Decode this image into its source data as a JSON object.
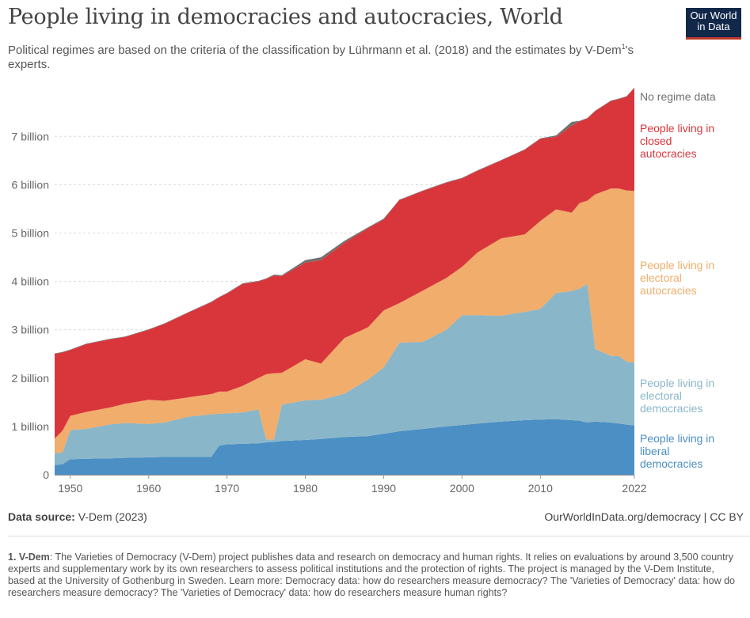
{
  "title": "People living in democracies and autocracies, World",
  "subtitle_main": "Political regimes are based on the criteria of the classification by Lührmann et al. (2018) and the estimates by V-Dem",
  "subtitle_sup": "1",
  "subtitle_end": "'s experts.",
  "logo": {
    "line1": "Our World",
    "line2": "in Data"
  },
  "colors": {
    "liberal": "#4c8fc4",
    "electoral_democracy": "#89b6c9",
    "electoral_autocracy": "#f0ad6b",
    "closed_autocracy": "#d9363b",
    "no_data": "#707070"
  },
  "source_label": "Data source:",
  "source_value": "V-Dem (2023)",
  "source_url": "OurWorldInData.org/democracy | CC BY",
  "note_label": "1. V-Dem",
  "note_text": ": The Varieties of Democracy (V-Dem) project publishes data and research on democracy and human rights. It relies on evaluations by around 3,500 country experts and supplementary work by its own researchers to assess political institutions and the protection of rights. The project is managed by the V-Dem Institute, based at the University of Gothenburg in Sweden. Learn more: Democracy data: how do researchers measure democracy? The 'Varieties of Democracy' data: how do researchers measure democracy? The 'Varieties of Democracy' data: how do researchers measure human rights?",
  "chart_data": {
    "type": "area",
    "stacked": true,
    "title": "People living in democracies and autocracies, World",
    "xlim": [
      1948,
      2022
    ],
    "ylim": [
      0,
      8
    ],
    "y_ticks": [
      {
        "value": 0,
        "label": "0"
      },
      {
        "value": 1,
        "label": "1 billion"
      },
      {
        "value": 2,
        "label": "2 billion"
      },
      {
        "value": 3,
        "label": "3 billion"
      },
      {
        "value": 4,
        "label": "4 billion"
      },
      {
        "value": 5,
        "label": "5 billion"
      },
      {
        "value": 6,
        "label": "6 billion"
      },
      {
        "value": 7,
        "label": "7 billion"
      }
    ],
    "x_ticks": [
      "1950",
      "1960",
      "1970",
      "1980",
      "1990",
      "2000",
      "2010",
      "2022"
    ],
    "grid": "horizontal dashed",
    "legend": "inline labels at right end",
    "units": "billion people",
    "x": [
      1948,
      1949,
      1950,
      1952,
      1955,
      1957,
      1960,
      1962,
      1965,
      1968,
      1969,
      1970,
      1972,
      1974,
      1975,
      1976,
      1977,
      1980,
      1982,
      1985,
      1988,
      1990,
      1992,
      1995,
      1998,
      2000,
      2002,
      2005,
      2008,
      2010,
      2012,
      2014,
      2015,
      2016,
      2017,
      2019,
      2020,
      2021,
      2022
    ],
    "series": [
      {
        "name": "People living in liberal democracies",
        "key": "liberal",
        "values": [
          0.2,
          0.22,
          0.32,
          0.33,
          0.34,
          0.35,
          0.36,
          0.37,
          0.37,
          0.37,
          0.6,
          0.63,
          0.64,
          0.65,
          0.67,
          0.68,
          0.7,
          0.72,
          0.74,
          0.78,
          0.8,
          0.85,
          0.9,
          0.95,
          1.0,
          1.03,
          1.06,
          1.1,
          1.13,
          1.14,
          1.15,
          1.13,
          1.12,
          1.08,
          1.1,
          1.08,
          1.06,
          1.04,
          1.02
        ]
      },
      {
        "name": "People living in electoral democracies",
        "key": "electoral_democracy",
        "values": [
          0.25,
          0.24,
          0.6,
          0.62,
          0.7,
          0.72,
          0.69,
          0.71,
          0.83,
          0.88,
          0.66,
          0.64,
          0.65,
          0.7,
          0.06,
          0.05,
          0.75,
          0.82,
          0.81,
          0.9,
          1.17,
          1.37,
          1.83,
          1.8,
          2.0,
          2.27,
          2.24,
          2.19,
          2.24,
          2.29,
          2.61,
          2.67,
          2.73,
          2.87,
          1.5,
          1.38,
          1.4,
          1.3,
          1.3
        ]
      },
      {
        "name": "People living in electoral autocracies",
        "key": "electoral_autocracy",
        "values": [
          0.3,
          0.45,
          0.3,
          0.35,
          0.35,
          0.4,
          0.5,
          0.45,
          0.4,
          0.42,
          0.46,
          0.45,
          0.55,
          0.65,
          1.35,
          1.37,
          0.66,
          0.85,
          0.75,
          1.15,
          1.08,
          1.18,
          0.82,
          1.06,
          1.07,
          1.0,
          1.3,
          1.6,
          1.6,
          1.82,
          1.73,
          1.62,
          1.77,
          1.72,
          3.2,
          3.46,
          3.46,
          3.54,
          3.55
        ]
      },
      {
        "name": "People living in closed autocracies",
        "key": "closed_autocracy",
        "values": [
          1.75,
          1.62,
          1.36,
          1.4,
          1.41,
          1.38,
          1.45,
          1.59,
          1.75,
          1.9,
          1.95,
          2.03,
          2.11,
          2.0,
          1.97,
          2.02,
          2.0,
          2.0,
          2.14,
          1.97,
          2.05,
          1.88,
          2.13,
          2.06,
          1.97,
          1.83,
          1.69,
          1.61,
          1.75,
          1.7,
          1.5,
          1.8,
          1.69,
          1.7,
          1.72,
          1.81,
          1.85,
          1.94,
          2.13
        ]
      },
      {
        "name": "No regime data",
        "key": "no_data",
        "values": [
          0.01,
          0.01,
          0.01,
          0.01,
          0.01,
          0.01,
          0.01,
          0.01,
          0.01,
          0.01,
          0.01,
          0.01,
          0.01,
          0.01,
          0.01,
          0.02,
          0.02,
          0.05,
          0.06,
          0.04,
          0.02,
          0.02,
          0.01,
          0.01,
          0.01,
          0.01,
          0.01,
          0.01,
          0.01,
          0.01,
          0.03,
          0.08,
          0.01,
          0.01,
          0.01,
          0.01,
          0.01,
          0.01,
          0.01
        ]
      }
    ],
    "labels": [
      {
        "key": "no_data",
        "lines": [
          "No regime data"
        ]
      },
      {
        "key": "closed_autocracy",
        "lines": [
          "People living in",
          "closed",
          "autocracies"
        ]
      },
      {
        "key": "electoral_autocracy",
        "lines": [
          "People living in",
          "electoral",
          "autocracies"
        ]
      },
      {
        "key": "electoral_democracy",
        "lines": [
          "People living in",
          "electoral",
          "democracies"
        ]
      },
      {
        "key": "liberal",
        "lines": [
          "People living in",
          "liberal",
          "democracies"
        ]
      }
    ]
  }
}
